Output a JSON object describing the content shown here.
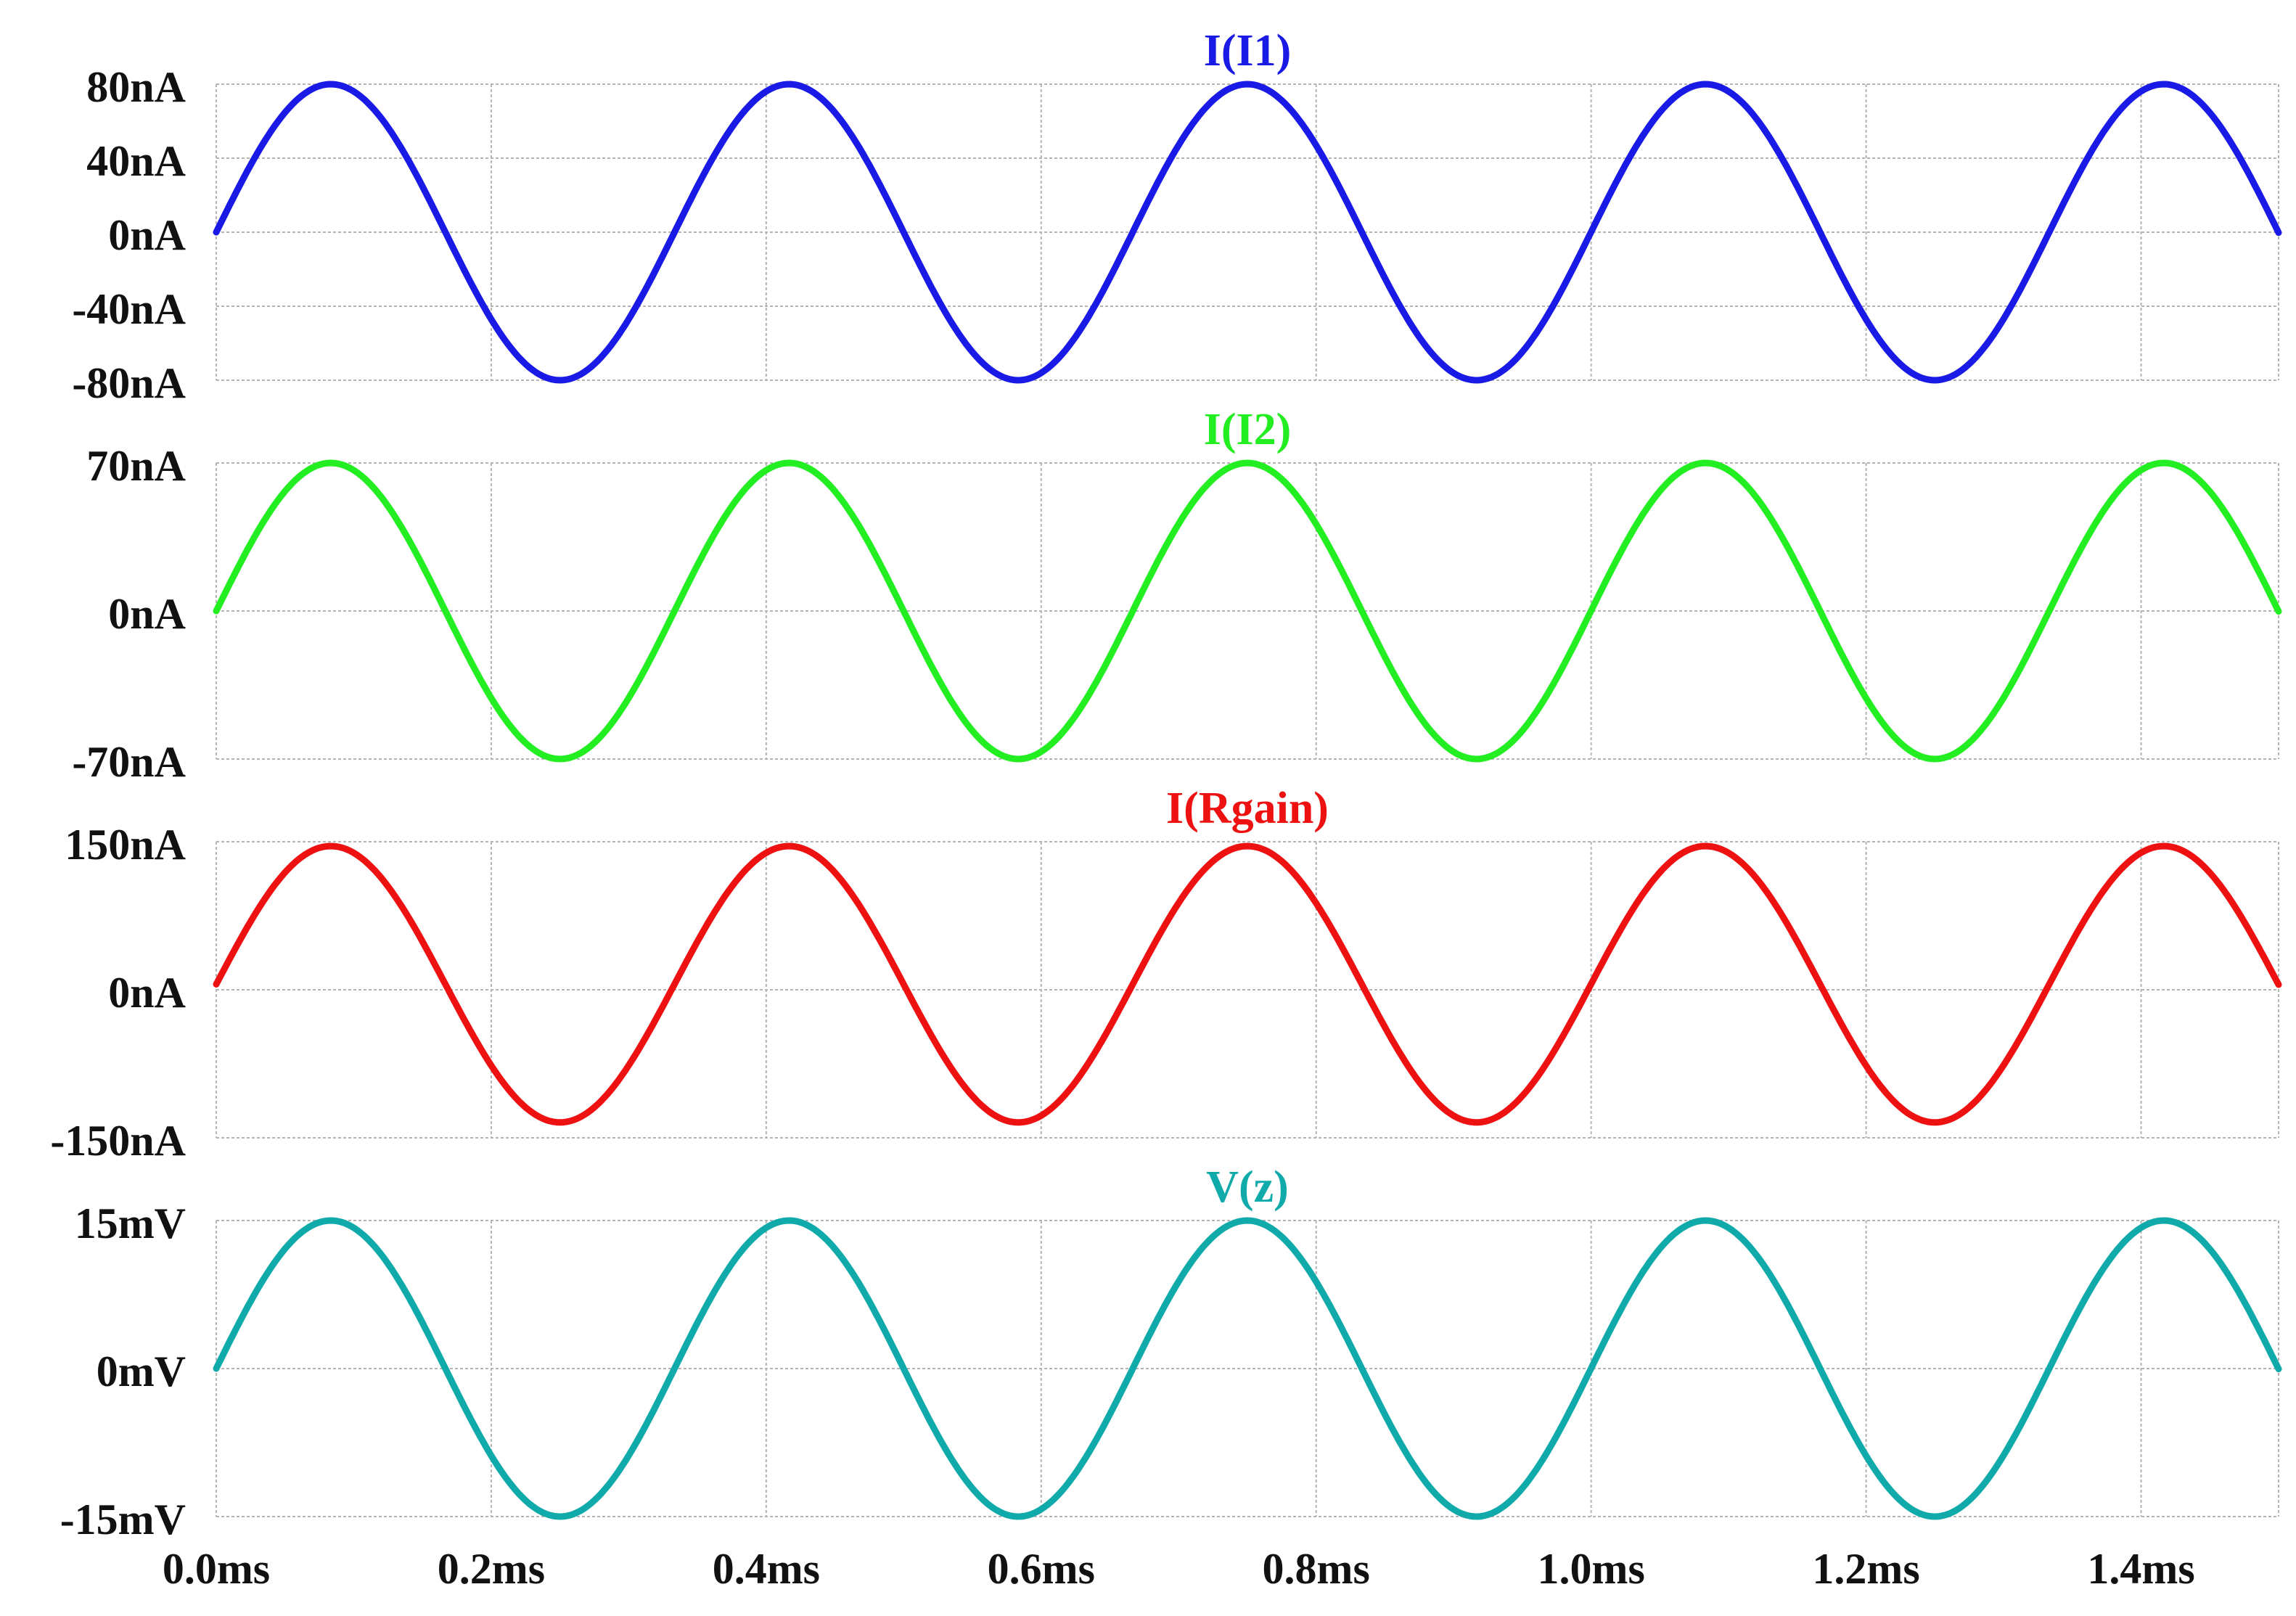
{
  "chart_data": [
    {
      "type": "line",
      "title": "I(I1)",
      "color": "#1a1ae6",
      "unit": "nA",
      "amplitude": 80,
      "period": 0.3333,
      "phase": 0,
      "xlim": [
        0,
        1.5
      ],
      "ylim": [
        -80,
        80
      ],
      "yticks": [
        {
          "value": 80,
          "label": "80nA"
        },
        {
          "value": 40,
          "label": "40nA"
        },
        {
          "value": 0,
          "label": "0nA"
        },
        {
          "value": -40,
          "label": "-40nA"
        },
        {
          "value": -80,
          "label": "-80nA"
        }
      ],
      "grid": true
    },
    {
      "type": "line",
      "title": "I(I2)",
      "color": "#22ee22",
      "unit": "nA",
      "amplitude": 70,
      "period": 0.3333,
      "phase": 0,
      "xlim": [
        0,
        1.5
      ],
      "ylim": [
        -70,
        70
      ],
      "yticks": [
        {
          "value": 70,
          "label": "70nA"
        },
        {
          "value": 0,
          "label": "0nA"
        },
        {
          "value": -70,
          "label": "-70nA"
        }
      ],
      "grid": true
    },
    {
      "type": "line",
      "title": "I(Rgain)",
      "color": "#ee1111",
      "unit": "nA",
      "amplitude": 140,
      "period": 0.3333,
      "phase": 0.04,
      "xlim": [
        0,
        1.5
      ],
      "ylim": [
        -150,
        150
      ],
      "yticks": [
        {
          "value": 150,
          "label": "150nA"
        },
        {
          "value": 0,
          "label": "0nA"
        },
        {
          "value": -150,
          "label": "-150nA"
        }
      ],
      "grid": true
    },
    {
      "type": "line",
      "title": "V(z)",
      "color": "#11aaaa",
      "unit": "mV",
      "amplitude": 15,
      "period": 0.3333,
      "phase": 0,
      "xlim": [
        0,
        1.5
      ],
      "ylim": [
        -15,
        15
      ],
      "yticks": [
        {
          "value": 15,
          "label": "15mV"
        },
        {
          "value": 0,
          "label": "0mV"
        },
        {
          "value": -15,
          "label": "-15mV"
        }
      ],
      "grid": true
    }
  ],
  "xaxis": {
    "ticks": [
      {
        "value": 0.0,
        "label": "0.0ms"
      },
      {
        "value": 0.2,
        "label": "0.2ms"
      },
      {
        "value": 0.4,
        "label": "0.4ms"
      },
      {
        "value": 0.6,
        "label": "0.6ms"
      },
      {
        "value": 0.8,
        "label": "0.8ms"
      },
      {
        "value": 1.0,
        "label": "1.0ms"
      },
      {
        "value": 1.2,
        "label": "1.2ms"
      },
      {
        "value": 1.4,
        "label": "1.4ms"
      }
    ]
  }
}
